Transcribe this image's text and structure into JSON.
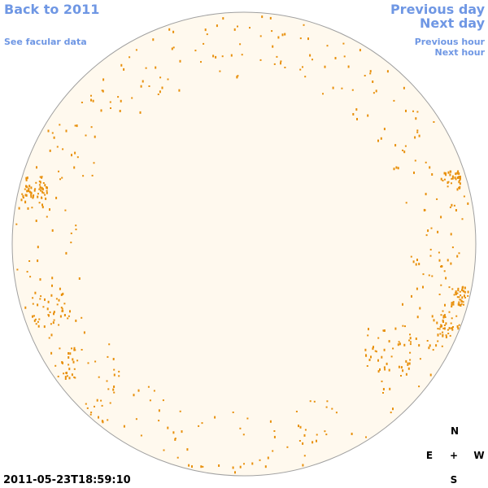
{
  "nav": {
    "back": "Back to 2011",
    "facular": "See facular data",
    "previous_day": "Previous day",
    "next_day": "Next day",
    "previous_hour": "Previous hour",
    "next_hour": "Next hour"
  },
  "timestamp": "2011-05-23T18:59:10",
  "compass": {
    "north": "N",
    "east": "E",
    "center": "+",
    "west": "W",
    "south": "S"
  }
}
